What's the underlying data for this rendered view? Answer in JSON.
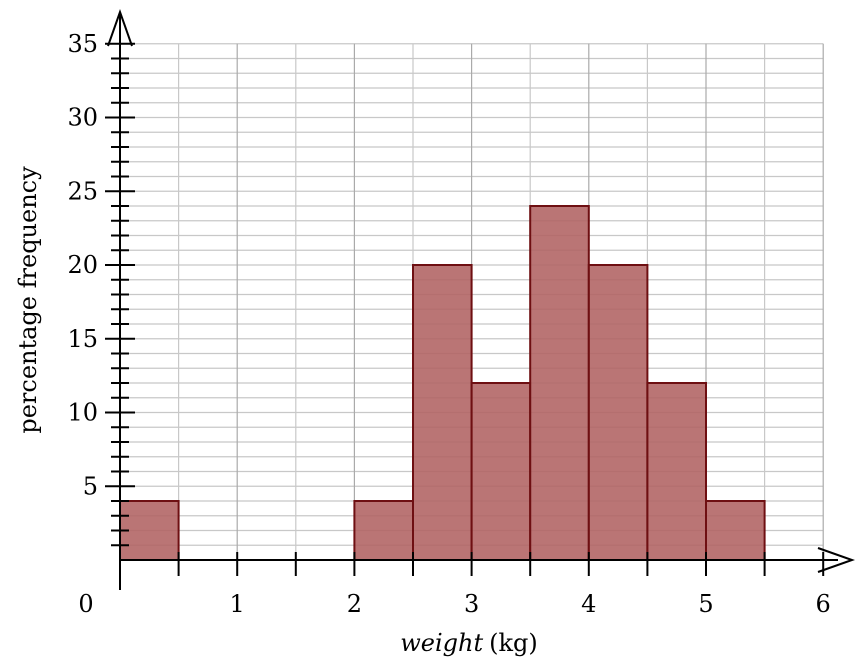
{
  "chart_data": {
    "type": "bar",
    "title": "",
    "xlabel": "weight",
    "xlabel_unit": "(kg)",
    "ylabel": "percentage frequency",
    "xlim": [
      0,
      6
    ],
    "ylim": [
      0,
      35
    ],
    "x_ticks": [
      "0",
      "1",
      "2",
      "3",
      "4",
      "5",
      "6"
    ],
    "y_ticks": [
      "5",
      "10",
      "15",
      "20",
      "25",
      "30",
      "35"
    ],
    "bins": [
      {
        "start": 0,
        "end": 0.5,
        "value": 4
      },
      {
        "start": 2,
        "end": 2.5,
        "value": 4
      },
      {
        "start": 2.5,
        "end": 3,
        "value": 20
      },
      {
        "start": 3,
        "end": 3.5,
        "value": 12
      },
      {
        "start": 3.5,
        "end": 4,
        "value": 24
      },
      {
        "start": 4,
        "end": 4.5,
        "value": 20
      },
      {
        "start": 4.5,
        "end": 5,
        "value": 12
      },
      {
        "start": 5,
        "end": 5.5,
        "value": 4
      }
    ],
    "grid": true,
    "bar_color": "#b06262",
    "bar_edge_color": "#6e0f12",
    "grid_color": "#c8c8c8"
  }
}
